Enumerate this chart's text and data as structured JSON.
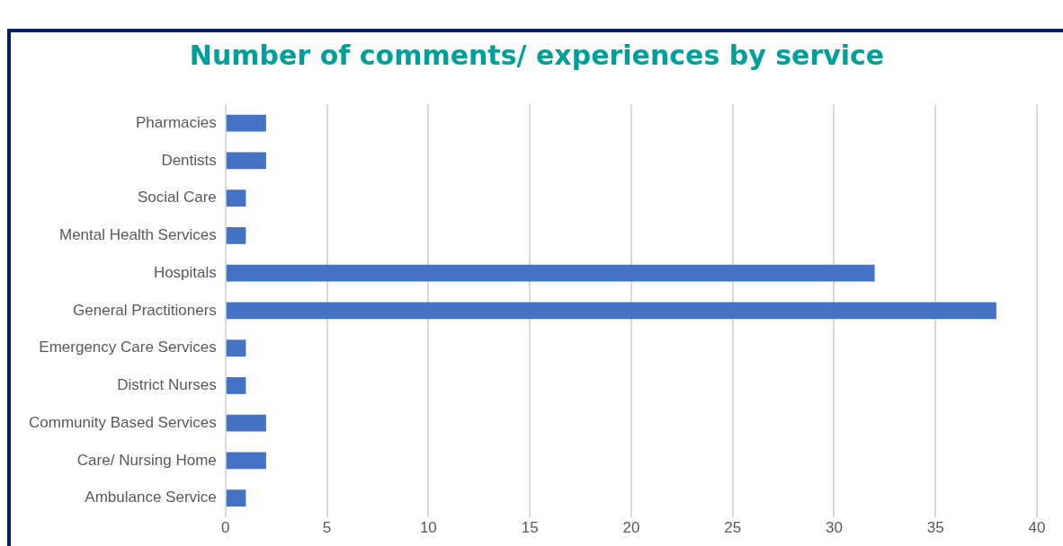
{
  "chart_data": {
    "type": "bar",
    "orientation": "horizontal",
    "title": "Number of comments/ experiences by service",
    "categories": [
      "Pharmacies",
      "Dentists",
      "Social Care",
      "Mental Health Services",
      "Hospitals",
      "General Practitioners",
      "Emergency Care Services",
      "District Nurses",
      "Community Based Services",
      "Care/ Nursing Home",
      "Ambulance Service"
    ],
    "values": [
      2,
      2,
      1,
      1,
      32,
      38,
      1,
      1,
      2,
      2,
      1
    ],
    "color": "#4472c4",
    "xlim": [
      0,
      40
    ],
    "xticks": [
      0,
      5,
      10,
      15,
      20,
      25,
      30,
      35,
      40
    ],
    "grid": "x",
    "legend": false
  }
}
